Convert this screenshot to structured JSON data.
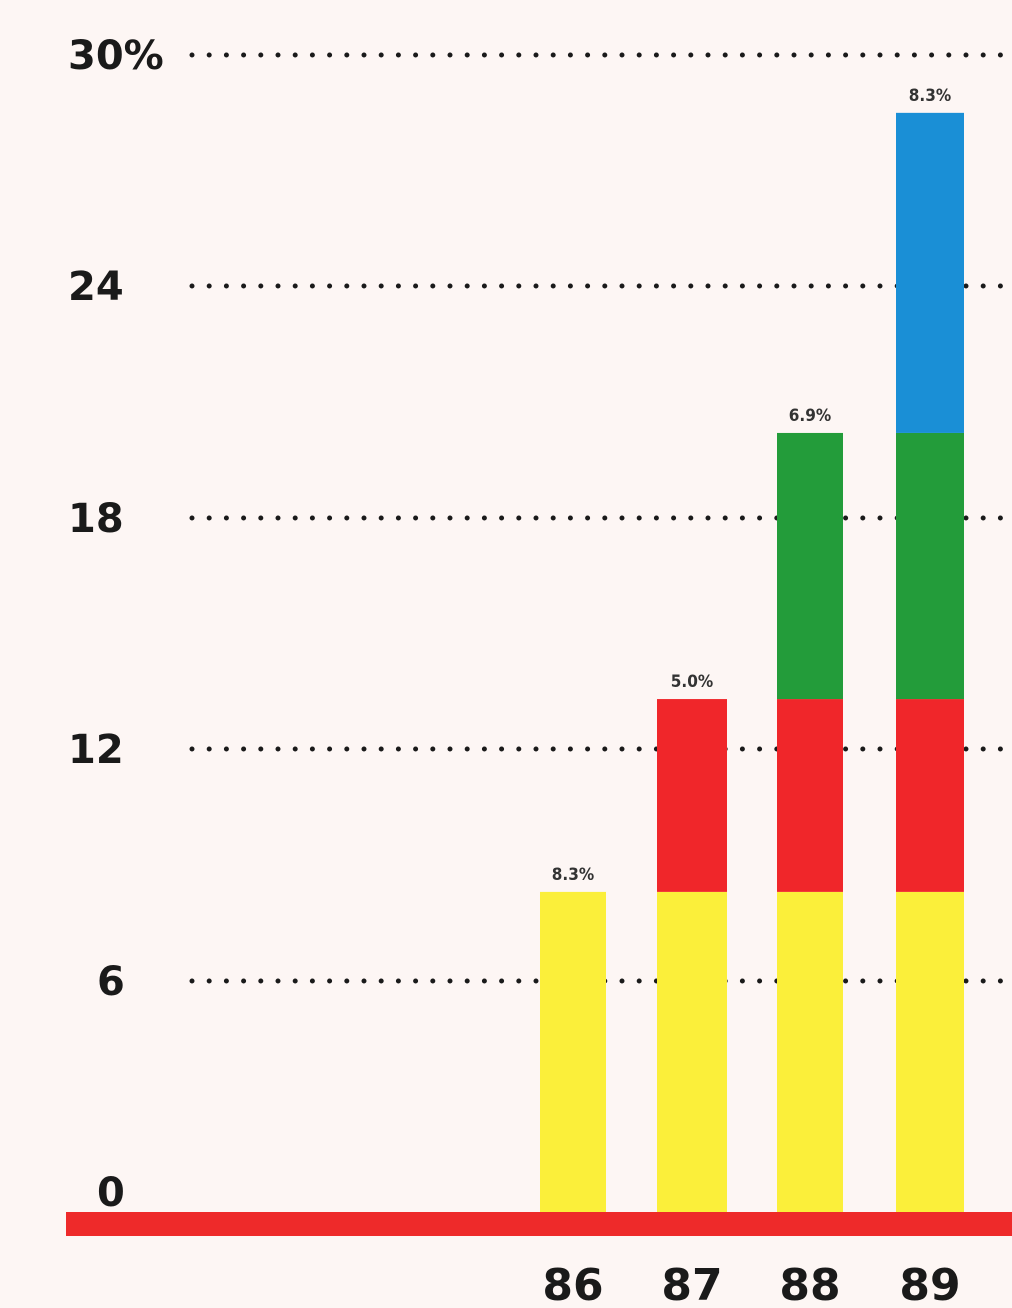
{
  "chart_data": {
    "type": "bar",
    "stacked": true,
    "categories": [
      "86",
      "87",
      "88",
      "89"
    ],
    "series": [
      {
        "values": [
          8.3,
          8.3,
          8.3,
          8.3
        ],
        "color": "#fbef3a"
      },
      {
        "values": [
          0,
          5.0,
          5.0,
          5.0
        ],
        "color": "#f0262a"
      },
      {
        "values": [
          0,
          0,
          6.9,
          6.9
        ],
        "color": "#239c3a"
      },
      {
        "values": [
          0,
          0,
          0,
          8.3
        ],
        "color": "#1a8fd6"
      }
    ],
    "data_labels": [
      "8.3%",
      "5.0%",
      "6.9%",
      "8.3%"
    ],
    "y_ticks": [
      {
        "value": 0,
        "label": "0"
      },
      {
        "value": 6,
        "label": "6"
      },
      {
        "value": 12,
        "label": "12"
      },
      {
        "value": 18,
        "label": "18"
      },
      {
        "value": 24,
        "label": "24"
      },
      {
        "value": 30,
        "label": "30%"
      }
    ],
    "ylim": [
      0,
      30
    ],
    "grid": "dotted",
    "baseline_color": "#ee2a2a"
  }
}
